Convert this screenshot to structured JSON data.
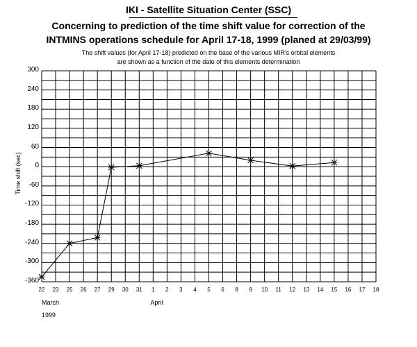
{
  "header": {
    "organization": "IKI - Satellite Situation Center (SSC)",
    "title_line1": "Concerning to prediction of the time shift value for correction of the",
    "title_line2": "INTMINS operations schedule for April 17-18, 1999 (planed at 29/03/99)",
    "subtitle_line1": "The shift values (for April 17-18) predicted on the base of the various MIR's orbital elements",
    "subtitle_line2": "are shown as a function of the date of this elements determination"
  },
  "chart_data": {
    "type": "line",
    "title": "Concerning to prediction of the time shift value for correction of the INTMINS operations schedule for April 17-18, 1999 (planed at 29/03/99)",
    "ylabel": "Time shift (sec)",
    "xlabel": "",
    "ylim": [
      -360,
      300
    ],
    "yticks": [
      300,
      240,
      180,
      120,
      60,
      0,
      -60,
      -120,
      -180,
      -240,
      -300,
      -360
    ],
    "xtick_labels": [
      "22",
      "23",
      "25",
      "26",
      "27",
      "29",
      "30",
      "31",
      "1",
      "2",
      "3",
      "4",
      "5",
      "6",
      "8",
      "9",
      "10",
      "11",
      "12",
      "13",
      "14",
      "15",
      "16",
      "17",
      "18"
    ],
    "month_labels": [
      "March",
      "April"
    ],
    "year_label": "1999",
    "grid": true,
    "series": [
      {
        "values": [
          {
            "x": "1999-03-22",
            "y": -345
          },
          {
            "x": "1999-03-25",
            "y": -240
          },
          {
            "x": "1999-03-27",
            "y": -222
          },
          {
            "x": "1999-03-29",
            "y": -2
          },
          {
            "x": "1999-03-31",
            "y": 3
          },
          {
            "x": "1999-04-05",
            "y": 42
          },
          {
            "x": "1999-04-09",
            "y": 20
          },
          {
            "x": "1999-04-12",
            "y": 2
          },
          {
            "x": "1999-04-15",
            "y": 13
          }
        ]
      }
    ]
  }
}
